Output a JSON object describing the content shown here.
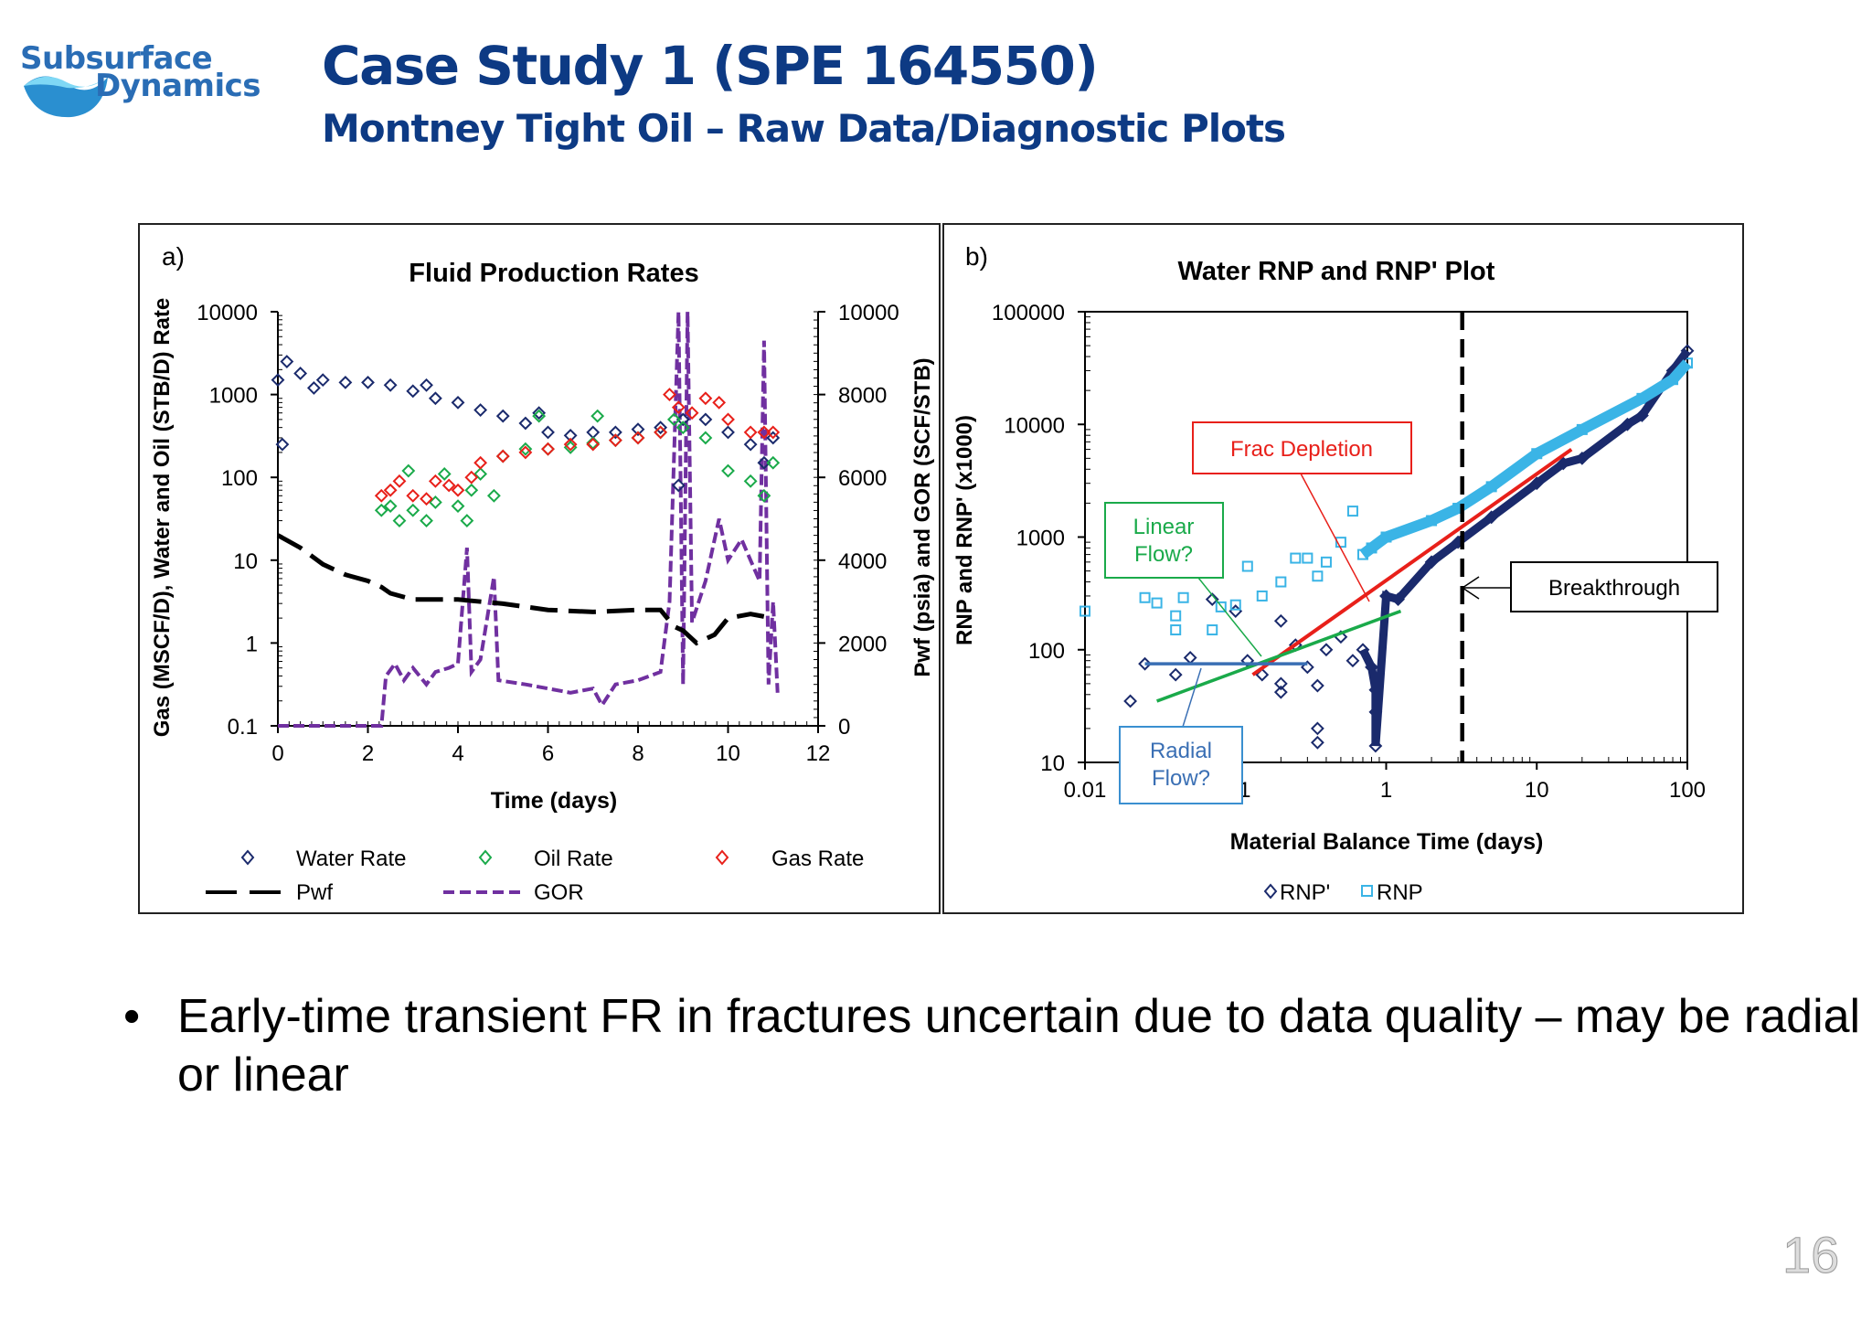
{
  "header": {
    "logo_line1": "Subsurface",
    "logo_line2": "Dynamics",
    "title": "Case Study 1 (SPE 164550)",
    "subtitle": "Montney Tight Oil – Raw Data/Diagnostic Plots"
  },
  "colors": {
    "title": "#0d3a84",
    "logo": "#2a6db5",
    "logo_wave": "#3db4e8",
    "water": "#1a2a6c",
    "oil": "#1aaa4a",
    "gas": "#e8201a",
    "pwf": "#000000",
    "gor": "#7030a0",
    "rnp": "#3ab4e6",
    "rnp_prime": "#1a2a6c",
    "frac": "#e8201a",
    "linear": "#1aaa4a",
    "radial": "#3a6fb4"
  },
  "chart_data": [
    {
      "panel_label": "a)",
      "type": "scatter",
      "title": "Fluid Production Rates",
      "xlabel": "Time (days)",
      "ylabel": "Gas (MSCF/D), Water and Oil (STB/D) Rate",
      "y2label": "Pwf (psia) and GOR (SCF/STB)",
      "xlim": [
        0,
        12
      ],
      "ylim": [
        0.1,
        10000
      ],
      "yscale": "log",
      "y2lim": [
        0,
        10000
      ],
      "xticks": [
        "0",
        "2",
        "4",
        "6",
        "8",
        "10",
        "12"
      ],
      "yticks": [
        "0.1",
        "1",
        "10",
        "100",
        "1000",
        "10000"
      ],
      "y2ticks": [
        "0",
        "2000",
        "4000",
        "6000",
        "8000",
        "10000"
      ],
      "legend": "bottom",
      "series": [
        {
          "name": "Water Rate",
          "axis": "left",
          "marker": "diamond",
          "points": [
            [
              0,
              1500
            ],
            [
              0.1,
              250
            ],
            [
              0.2,
              2500
            ],
            [
              0.5,
              1800
            ],
            [
              0.8,
              1200
            ],
            [
              1,
              1500
            ],
            [
              1.5,
              1400
            ],
            [
              2,
              1400
            ],
            [
              2.5,
              1300
            ],
            [
              3,
              1100
            ],
            [
              3.3,
              1300
            ],
            [
              3.5,
              900
            ],
            [
              4,
              800
            ],
            [
              4.5,
              650
            ],
            [
              5,
              550
            ],
            [
              5.5,
              450
            ],
            [
              5.8,
              600
            ],
            [
              6,
              350
            ],
            [
              6.5,
              320
            ],
            [
              7,
              350
            ],
            [
              7.5,
              350
            ],
            [
              8,
              380
            ],
            [
              8.5,
              400
            ],
            [
              8.9,
              80
            ],
            [
              9,
              500
            ],
            [
              9.5,
              500
            ],
            [
              10,
              350
            ],
            [
              10.5,
              250
            ],
            [
              10.8,
              150
            ],
            [
              11,
              300
            ]
          ]
        },
        {
          "name": "Oil Rate",
          "axis": "left",
          "marker": "diamond",
          "points": [
            [
              2.3,
              40
            ],
            [
              2.5,
              45
            ],
            [
              2.7,
              30
            ],
            [
              2.9,
              120
            ],
            [
              3,
              40
            ],
            [
              3.3,
              30
            ],
            [
              3.5,
              50
            ],
            [
              3.7,
              110
            ],
            [
              4,
              45
            ],
            [
              4.2,
              30
            ],
            [
              4.3,
              70
            ],
            [
              4.5,
              110
            ],
            [
              4.8,
              60
            ],
            [
              5,
              180
            ],
            [
              5.5,
              220
            ],
            [
              5.8,
              550
            ],
            [
              6,
              220
            ],
            [
              6.5,
              230
            ],
            [
              7,
              260
            ],
            [
              7.1,
              550
            ],
            [
              7.5,
              280
            ],
            [
              8,
              300
            ],
            [
              8.5,
              350
            ],
            [
              8.8,
              500
            ],
            [
              9,
              400
            ],
            [
              9.5,
              300
            ],
            [
              10,
              120
            ],
            [
              10.5,
              90
            ],
            [
              10.8,
              60
            ],
            [
              11,
              150
            ]
          ]
        },
        {
          "name": "Gas Rate",
          "axis": "left",
          "marker": "diamond",
          "points": [
            [
              2.3,
              60
            ],
            [
              2.5,
              70
            ],
            [
              2.7,
              90
            ],
            [
              3,
              60
            ],
            [
              3.3,
              55
            ],
            [
              3.5,
              90
            ],
            [
              3.8,
              80
            ],
            [
              4,
              70
            ],
            [
              4.3,
              100
            ],
            [
              4.5,
              150
            ],
            [
              5,
              180
            ],
            [
              5.5,
              200
            ],
            [
              6,
              220
            ],
            [
              6.5,
              250
            ],
            [
              7,
              250
            ],
            [
              7.5,
              280
            ],
            [
              8,
              300
            ],
            [
              8.5,
              350
            ],
            [
              8.7,
              1000
            ],
            [
              8.9,
              700
            ],
            [
              9.2,
              600
            ],
            [
              9.5,
              900
            ],
            [
              9.8,
              800
            ],
            [
              10,
              500
            ],
            [
              10.5,
              350
            ],
            [
              10.8,
              350
            ],
            [
              11,
              350
            ]
          ]
        },
        {
          "name": "Pwf",
          "axis": "right",
          "style": "long-dash",
          "points": [
            [
              0,
              4600
            ],
            [
              0.5,
              4300
            ],
            [
              1,
              3900
            ],
            [
              1.5,
              3650
            ],
            [
              2,
              3500
            ],
            [
              2.3,
              3350
            ],
            [
              2.5,
              3200
            ],
            [
              3,
              3050
            ],
            [
              4,
              3050
            ],
            [
              5,
              2950
            ],
            [
              6,
              2800
            ],
            [
              7,
              2750
            ],
            [
              8,
              2800
            ],
            [
              8.5,
              2800
            ],
            [
              8.8,
              2400
            ],
            [
              9,
              2300
            ],
            [
              9.3,
              2000
            ],
            [
              9.7,
              2200
            ],
            [
              10,
              2600
            ],
            [
              10.5,
              2700
            ],
            [
              11,
              2600
            ]
          ]
        },
        {
          "name": "GOR",
          "axis": "right",
          "style": "short-dash",
          "points": [
            [
              0,
              0
            ],
            [
              2.3,
              0
            ],
            [
              2.4,
              1200
            ],
            [
              2.6,
              1500
            ],
            [
              2.8,
              1100
            ],
            [
              3,
              1400
            ],
            [
              3.3,
              1000
            ],
            [
              3.5,
              1300
            ],
            [
              3.8,
              1400
            ],
            [
              4,
              1500
            ],
            [
              4.2,
              4300
            ],
            [
              4.3,
              1300
            ],
            [
              4.5,
              1600
            ],
            [
              4.8,
              3600
            ],
            [
              4.9,
              1100
            ],
            [
              5.5,
              1000
            ],
            [
              6,
              900
            ],
            [
              6.5,
              800
            ],
            [
              7,
              900
            ],
            [
              7.2,
              500
            ],
            [
              7.5,
              1000
            ],
            [
              8,
              1100
            ],
            [
              8.5,
              1300
            ],
            [
              8.7,
              3000
            ],
            [
              8.9,
              10000
            ],
            [
              9,
              1000
            ],
            [
              9.1,
              10000
            ],
            [
              9.2,
              2500
            ],
            [
              9.5,
              3500
            ],
            [
              9.8,
              5000
            ],
            [
              10,
              4000
            ],
            [
              10.3,
              4500
            ],
            [
              10.5,
              4000
            ],
            [
              10.7,
              3500
            ],
            [
              10.8,
              9300
            ],
            [
              10.9,
              1000
            ],
            [
              11,
              3000
            ],
            [
              11.1,
              800
            ]
          ]
        }
      ]
    },
    {
      "panel_label": "b)",
      "type": "scatter",
      "title": "Water RNP and RNP' Plot",
      "xlabel": "Material Balance Time (days)",
      "ylabel": "RNP and RNP' (x1000)",
      "xscale": "log",
      "yscale": "log",
      "xlim": [
        0.01,
        100
      ],
      "ylim": [
        10,
        100000
      ],
      "xticks": [
        "0.01",
        "0.1",
        "1",
        "10",
        "100"
      ],
      "yticks": [
        "10",
        "100",
        "1000",
        "10000",
        "100000"
      ],
      "legend": "bottom",
      "series": [
        {
          "name": "RNP'",
          "marker": "diamond",
          "points": [
            [
              0.02,
              35
            ],
            [
              0.025,
              75
            ],
            [
              0.04,
              60
            ],
            [
              0.05,
              85
            ],
            [
              0.07,
              280
            ],
            [
              0.1,
              220
            ],
            [
              0.12,
              80
            ],
            [
              0.15,
              60
            ],
            [
              0.2,
              50
            ],
            [
              0.2,
              42
            ],
            [
              0.2,
              180
            ],
            [
              0.25,
              110
            ],
            [
              0.3,
              70
            ],
            [
              0.35,
              48
            ],
            [
              0.35,
              20
            ],
            [
              0.35,
              15
            ],
            [
              0.4,
              100
            ],
            [
              0.5,
              130
            ],
            [
              0.6,
              80
            ],
            [
              0.7,
              100
            ],
            [
              0.8,
              70
            ],
            [
              0.85,
              44
            ],
            [
              0.85,
              28
            ],
            [
              0.85,
              14
            ],
            [
              1,
              300
            ],
            [
              1.2,
              280
            ],
            [
              2,
              600
            ],
            [
              3,
              900
            ],
            [
              5,
              1500
            ],
            [
              10,
              3000
            ],
            [
              15,
              4500
            ],
            [
              20,
              5000
            ],
            [
              40,
              10000
            ],
            [
              50,
              12000
            ],
            [
              80,
              30000
            ],
            [
              100,
              45000
            ]
          ]
        },
        {
          "name": "RNP",
          "marker": "square",
          "points": [
            [
              0.01,
              220
            ],
            [
              0.025,
              290
            ],
            [
              0.03,
              260
            ],
            [
              0.04,
              150
            ],
            [
              0.04,
              200
            ],
            [
              0.045,
              290
            ],
            [
              0.07,
              150
            ],
            [
              0.08,
              240
            ],
            [
              0.1,
              250
            ],
            [
              0.12,
              550
            ],
            [
              0.15,
              300
            ],
            [
              0.2,
              400
            ],
            [
              0.25,
              650
            ],
            [
              0.3,
              650
            ],
            [
              0.35,
              450
            ],
            [
              0.4,
              600
            ],
            [
              0.5,
              900
            ],
            [
              0.6,
              1700
            ],
            [
              0.7,
              700
            ],
            [
              0.8,
              800
            ],
            [
              1,
              1000
            ],
            [
              2,
              1400
            ],
            [
              3,
              1800
            ],
            [
              5,
              2800
            ],
            [
              10,
              5500
            ],
            [
              20,
              9000
            ],
            [
              50,
              17000
            ],
            [
              80,
              25000
            ],
            [
              100,
              35000
            ]
          ]
        }
      ],
      "fit_lines": [
        {
          "label": "Frac Depletion",
          "from": [
            0.13,
            60
          ],
          "to": [
            17,
            6000
          ]
        },
        {
          "label": "Linear Flow?",
          "from": [
            0.03,
            35
          ],
          "to": [
            1.25,
            220
          ]
        },
        {
          "label": "Radial Flow?",
          "from": [
            0.025,
            75
          ],
          "to": [
            0.3,
            75
          ]
        }
      ],
      "breakthrough_x": 3.2,
      "annotations": [
        "Frac Depletion",
        "Linear Flow?",
        "Radial Flow?",
        "Breakthrough"
      ]
    }
  ],
  "bullet": {
    "symbol": "•",
    "text": "Early-time transient FR in fractures uncertain due to data quality – may be radial or linear"
  },
  "page_number": "16"
}
